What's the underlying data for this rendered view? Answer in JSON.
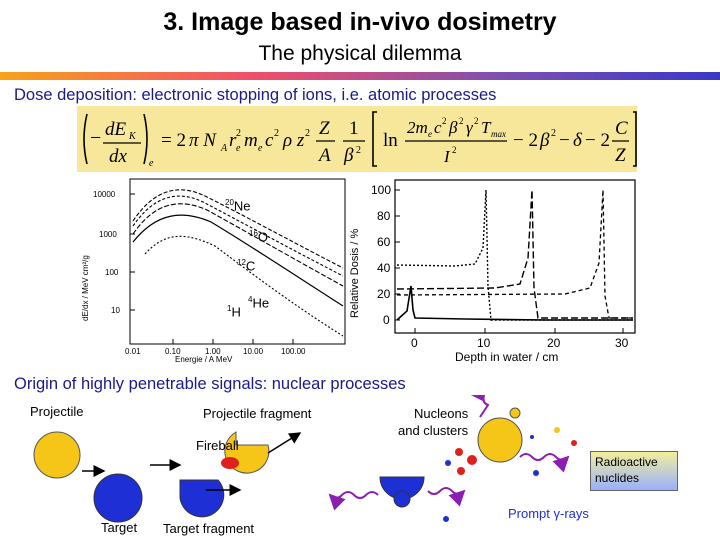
{
  "header": {
    "title": "3. Image based in-vivo dosimetry",
    "subtitle": "The physical dilemma"
  },
  "dose_section": {
    "heading": "Dose deposition: electronic stopping of ions, i.e. atomic processes"
  },
  "left_plot": {
    "ylabel": "dE/dx / MeV cm²/g",
    "xlabel": "Energie / A MeV",
    "y_ticks": [
      "10000",
      "1000",
      "100",
      "10"
    ],
    "x_ticks": [
      "0.01",
      "0.10",
      "1.00",
      "10.00",
      "100.00"
    ],
    "ions": [
      {
        "mass": "20",
        "symbol": "Ne"
      },
      {
        "mass": "16",
        "symbol": "O"
      },
      {
        "mass": "12",
        "symbol": "C"
      },
      {
        "mass": "1",
        "symbol": "H"
      },
      {
        "mass": "4",
        "symbol": "He"
      }
    ]
  },
  "right_plot": {
    "ylabel": "Relative Dosis / %",
    "xlabel": "Depth in water / cm",
    "y_ticks": [
      "100",
      "80",
      "60",
      "40",
      "20",
      "0"
    ],
    "x_ticks": [
      "0",
      "10",
      "20",
      "30"
    ]
  },
  "nuclear_section": {
    "heading": "Origin of highly penetrable signals: nuclear processes",
    "projectile": "Projectile",
    "projectile_fragment": "Projectile fragment",
    "nucleons_line1": "Nucleons",
    "nucleons_line2": "and clusters",
    "fireball": "Fireball",
    "target": "Target",
    "target_fragment": "Target fragment",
    "radioactive_line1": "Radioactive",
    "radioactive_line2": "nuclides",
    "prompt_rays": "Prompt γ-rays"
  },
  "colors": {
    "heading": "#1a1a8a",
    "nucleus_yellow": "#f5c518",
    "nucleus_blue": "#1e2fd6",
    "fireball_red": "#e0201c",
    "gamma_purple": "#8b1fb0"
  }
}
